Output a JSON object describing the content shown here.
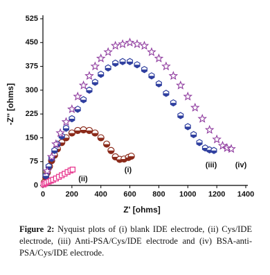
{
  "chart_data": {
    "type": "scatter",
    "xlabel": "Z' [ohms]",
    "ylabel": "-Z'' [ohms]",
    "xlim": [
      0,
      1400
    ],
    "xticks": [
      0,
      200,
      400,
      600,
      800,
      1000,
      1200,
      1400
    ],
    "ylim": [
      0,
      525
    ],
    "yticks": [
      0,
      75,
      150,
      225,
      300,
      375,
      450,
      525
    ],
    "series": [
      {
        "name": "(i)",
        "color": "#8b2a1a",
        "marker": "circle",
        "x": [
          10,
          20,
          30,
          45,
          60,
          80,
          100,
          130,
          160,
          200,
          240,
          280,
          320,
          360,
          400,
          440,
          470,
          500,
          530,
          560,
          590,
          610
        ],
        "values": [
          10,
          25,
          40,
          60,
          78,
          95,
          115,
          135,
          150,
          165,
          173,
          175,
          173,
          165,
          150,
          130,
          110,
          90,
          82,
          83,
          88,
          92
        ]
      },
      {
        "name": "(ii)",
        "color": "#e8388f",
        "marker": "square",
        "x": [
          5,
          15,
          25,
          40,
          55,
          70,
          90,
          110,
          130,
          150,
          170,
          190,
          205
        ],
        "values": [
          3,
          6,
          9,
          12,
          15,
          18,
          22,
          27,
          32,
          37,
          42,
          47,
          50
        ]
      },
      {
        "name": "(iii)",
        "color": "#2f3f9f",
        "marker": "hexagon",
        "x": [
          20,
          40,
          60,
          80,
          100,
          130,
          160,
          200,
          240,
          280,
          320,
          360,
          400,
          450,
          500,
          550,
          600,
          650,
          700,
          750,
          800,
          850,
          900,
          950,
          1000,
          1040,
          1080,
          1120,
          1150,
          1180
        ],
        "values": [
          30,
          60,
          85,
          110,
          130,
          155,
          180,
          210,
          240,
          270,
          300,
          325,
          350,
          370,
          385,
          390,
          390,
          380,
          365,
          345,
          320,
          290,
          260,
          220,
          185,
          160,
          135,
          118,
          112,
          110
        ]
      },
      {
        "name": "(iv)",
        "color": "#8e3a9e",
        "marker": "star",
        "x": [
          30,
          60,
          90,
          120,
          160,
          200,
          240,
          280,
          320,
          360,
          400,
          450,
          500,
          550,
          600,
          650,
          700,
          750,
          800,
          850,
          900,
          950,
          1000,
          1050,
          1100,
          1150,
          1200,
          1240,
          1270,
          1300
        ],
        "values": [
          45,
          90,
          130,
          165,
          200,
          240,
          280,
          315,
          345,
          375,
          400,
          420,
          440,
          445,
          450,
          445,
          440,
          420,
          400,
          375,
          345,
          315,
          280,
          245,
          210,
          175,
          145,
          125,
          118,
          115
        ]
      }
    ]
  },
  "caption": {
    "label": "Figure 2:",
    "text": "Nyquist plots of (i) blank IDE electrode, (ii) Cys/IDE electrode, (iii) Anti-PSA/Cys/IDE electrode and (iv) BSA-anti-PSA/Cys/IDE electrode."
  }
}
